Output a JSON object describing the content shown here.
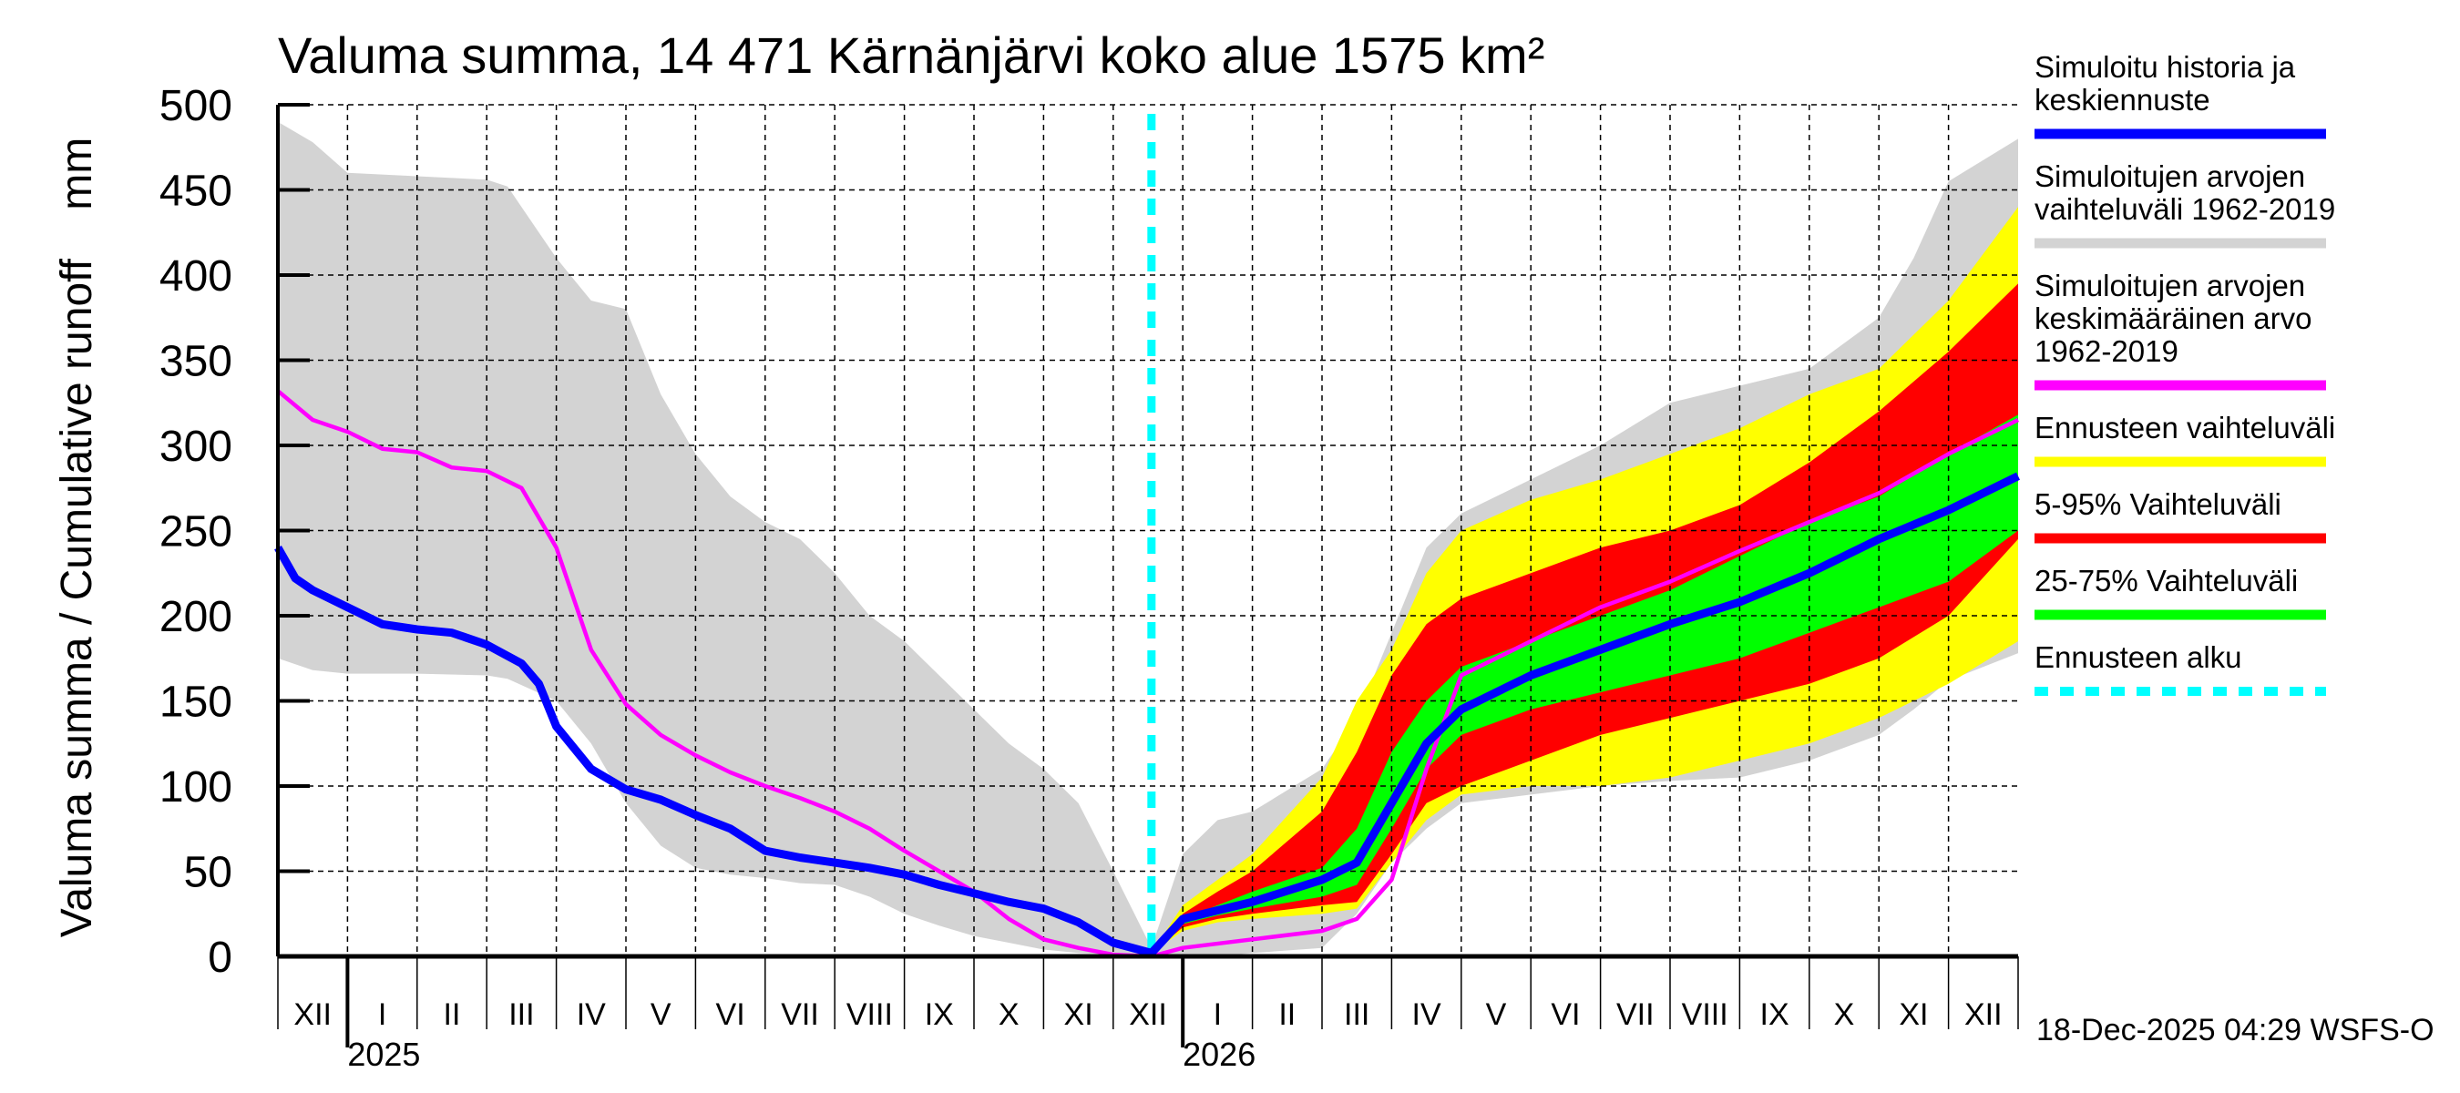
{
  "chart_data": {
    "type": "area",
    "title": "Valuma summa, 14 471 Kärnänjärvi koko alue 1575 km²",
    "ylabel": "Valuma summa / Cumulative runoff    mm",
    "xlabel": "",
    "ylim": [
      0,
      500
    ],
    "yticks": [
      0,
      50,
      100,
      150,
      200,
      250,
      300,
      350,
      400,
      450,
      500
    ],
    "grid": true,
    "legend_position": "right",
    "x_unit": "months since start of Dec 2024",
    "xlim": [
      0,
      25
    ],
    "month_labels": [
      "XII",
      "I",
      "II",
      "III",
      "IV",
      "V",
      "VI",
      "VII",
      "VIII",
      "IX",
      "X",
      "XI",
      "XII",
      "I",
      "II",
      "III",
      "IV",
      "V",
      "VI",
      "VII",
      "VIII",
      "IX",
      "X",
      "XI",
      "XII"
    ],
    "year_labels": [
      {
        "label": "2025",
        "month_index": 1
      },
      {
        "label": "2026",
        "month_index": 13
      }
    ],
    "forecast_start": 12.55,
    "timestamp": "18-Dec-2025 04:29 WSFS-O",
    "legend": [
      {
        "label_lines": [
          "Simuloitu historia ja",
          "keskiennuste"
        ],
        "color": "#0000ff",
        "style": "solid"
      },
      {
        "label_lines": [
          "Simuloitujen arvojen",
          "vaihteluväli 1962-2019"
        ],
        "color": "#d3d3d3",
        "style": "solid"
      },
      {
        "label_lines": [
          "Simuloitujen arvojen",
          "keskimääräinen arvo",
          "   1962-2019"
        ],
        "color": "#ff00ff",
        "style": "solid"
      },
      {
        "label_lines": [
          "Ennusteen vaihteluväli"
        ],
        "color": "#ffff00",
        "style": "solid"
      },
      {
        "label_lines": [
          "5-95% Vaihteluväli"
        ],
        "color": "#ff0000",
        "style": "solid"
      },
      {
        "label_lines": [
          "25-75% Vaihteluväli"
        ],
        "color": "#00ff00",
        "style": "solid"
      },
      {
        "label_lines": [
          "Ennusteen alku"
        ],
        "color": "#00ffff",
        "style": "dashed"
      }
    ],
    "series": [
      {
        "name": "Simuloitujen arvojen vaihteluväli 1962-2019",
        "kind": "band",
        "color": "#d3d3d3",
        "x": [
          0,
          0.5,
          1,
          2,
          3,
          3.3,
          4,
          4.5,
          5,
          5.5,
          6,
          6.5,
          7,
          7.5,
          8,
          8.5,
          9,
          9.5,
          10,
          10.5,
          11,
          11.5,
          12,
          12.55,
          13,
          13.5,
          14,
          15,
          15.5,
          16,
          16.5,
          17,
          18,
          19,
          20,
          21,
          22,
          23,
          23.5,
          24,
          25
        ],
        "upper": [
          490,
          478,
          460,
          458,
          456,
          452,
          410,
          385,
          380,
          330,
          295,
          270,
          255,
          245,
          225,
          200,
          185,
          165,
          145,
          125,
          110,
          90,
          50,
          5,
          60,
          80,
          85,
          110,
          140,
          190,
          240,
          260,
          280,
          300,
          325,
          335,
          345,
          375,
          410,
          455,
          480
        ],
        "lower": [
          175,
          168,
          166,
          166,
          165,
          163,
          150,
          125,
          90,
          65,
          52,
          48,
          46,
          43,
          42,
          35,
          25,
          18,
          12,
          8,
          4,
          2,
          1,
          0,
          0,
          0,
          2,
          5,
          25,
          55,
          75,
          90,
          95,
          100,
          103,
          105,
          115,
          130,
          145,
          162,
          178
        ]
      },
      {
        "name": "Ennusteen vaihteluväli",
        "kind": "band",
        "color": "#ffff00",
        "x": [
          12.55,
          13,
          13.5,
          14,
          15,
          15.5,
          16,
          16.5,
          17,
          18,
          19,
          20,
          21,
          22,
          23,
          24,
          25
        ],
        "upper": [
          2,
          30,
          45,
          60,
          105,
          150,
          180,
          225,
          250,
          268,
          280,
          295,
          310,
          330,
          345,
          385,
          440
        ],
        "lower": [
          2,
          15,
          20,
          22,
          25,
          28,
          55,
          80,
          95,
          100,
          100,
          105,
          115,
          125,
          140,
          160,
          185
        ]
      },
      {
        "name": "5-95% Vaihteluväli",
        "kind": "band",
        "color": "#ff0000",
        "x": [
          12.55,
          13,
          13.5,
          14,
          15,
          15.5,
          16,
          16.5,
          17,
          18,
          19,
          20,
          21,
          22,
          23,
          24,
          25
        ],
        "upper": [
          2,
          25,
          38,
          50,
          85,
          120,
          165,
          195,
          210,
          225,
          240,
          250,
          265,
          290,
          320,
          355,
          395
        ],
        "lower": [
          2,
          17,
          22,
          25,
          30,
          32,
          60,
          90,
          100,
          115,
          130,
          140,
          150,
          160,
          175,
          200,
          245
        ]
      },
      {
        "name": "25-75% Vaihteluväli",
        "kind": "band",
        "color": "#00ff00",
        "x": [
          12.55,
          13,
          13.5,
          14,
          15,
          15.5,
          16,
          16.5,
          17,
          18,
          19,
          20,
          21,
          22,
          23,
          24,
          25
        ],
        "upper": [
          2,
          22,
          30,
          38,
          52,
          75,
          120,
          150,
          170,
          185,
          200,
          215,
          235,
          255,
          270,
          295,
          318
        ],
        "lower": [
          2,
          19,
          24,
          28,
          35,
          42,
          75,
          110,
          130,
          145,
          155,
          165,
          175,
          190,
          205,
          220,
          250
        ]
      },
      {
        "name": "Simuloitujen arvojen keskimääräinen arvo 1962-2019",
        "kind": "line",
        "color": "#ff00ff",
        "x": [
          0,
          0.5,
          1,
          1.5,
          2,
          2.5,
          3,
          3.5,
          4,
          4.5,
          5,
          5.5,
          6,
          6.5,
          7,
          7.5,
          8,
          8.5,
          9,
          9.5,
          10,
          10.5,
          11,
          11.5,
          12,
          12.55,
          13,
          14,
          15,
          15.5,
          16,
          16.5,
          17,
          18,
          19,
          20,
          21,
          22,
          23,
          24,
          25
        ],
        "values": [
          332,
          315,
          308,
          298,
          296,
          287,
          285,
          275,
          240,
          180,
          148,
          130,
          118,
          108,
          100,
          93,
          85,
          75,
          62,
          50,
          38,
          22,
          10,
          5,
          1,
          0,
          5,
          10,
          15,
          22,
          45,
          110,
          165,
          185,
          205,
          220,
          238,
          255,
          272,
          295,
          315
        ]
      },
      {
        "name": "Simuloitu historia ja keskiennuste",
        "kind": "line",
        "color": "#0000ff",
        "x": [
          0,
          0.25,
          0.5,
          1,
          1.5,
          2,
          2.5,
          3,
          3.5,
          3.75,
          4,
          4.5,
          5,
          5.5,
          6,
          6.5,
          7,
          7.5,
          8,
          8.5,
          9,
          9.5,
          10,
          10.5,
          11,
          11.5,
          12,
          12.55,
          13,
          13.5,
          14,
          15,
          15.5,
          16,
          16.5,
          17,
          18,
          19,
          20,
          21,
          22,
          23,
          24,
          25
        ],
        "values": [
          240,
          222,
          215,
          205,
          195,
          192,
          190,
          183,
          172,
          160,
          135,
          110,
          98,
          92,
          83,
          75,
          62,
          58,
          55,
          52,
          48,
          42,
          37,
          32,
          28,
          20,
          8,
          2,
          22,
          27,
          32,
          45,
          55,
          90,
          125,
          145,
          165,
          180,
          195,
          208,
          225,
          245,
          262,
          282
        ]
      }
    ]
  }
}
